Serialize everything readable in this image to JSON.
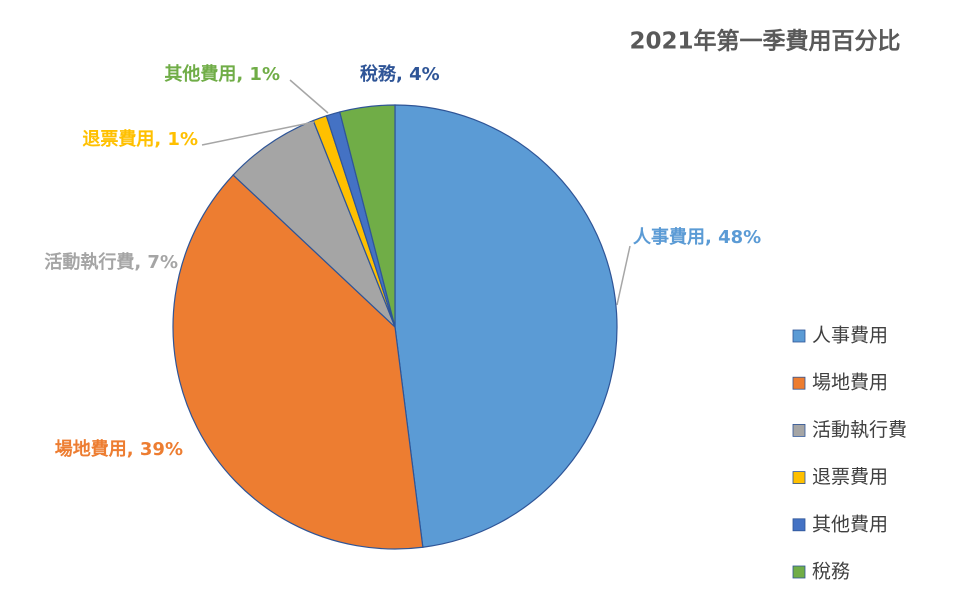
{
  "chart_data": {
    "type": "pie",
    "title": "2021年第一季費用百分比",
    "categories": [
      "人事費用",
      "場地費用",
      "活動執行費",
      "退票費用",
      "其他費用",
      "稅務"
    ],
    "values": [
      48,
      39,
      7,
      1,
      1,
      4
    ],
    "value_labels": [
      "人事費用, 48%",
      "場地費用, 39%",
      "活動執行費, 7%",
      "退票費用, 1%",
      "其他費用, 1%",
      "稅務, 4%"
    ],
    "colors": [
      "#5b9bd5",
      "#ed7d31",
      "#a5a5a5",
      "#ffc000",
      "#4472c4",
      "#70ad47"
    ],
    "label_colors": [
      "#5b9bd5",
      "#ed7d31",
      "#a5a5a5",
      "#ffc000",
      "#70ad47",
      "#2f5597"
    ],
    "legend": "right"
  }
}
